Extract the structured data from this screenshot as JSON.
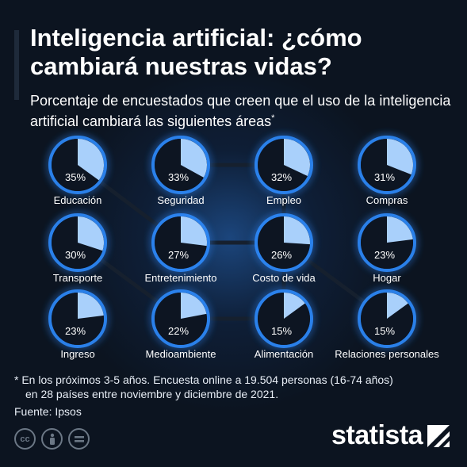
{
  "header": {
    "title": "Inteligencia artificial: ¿cómo cambiará nuestras vidas?",
    "subtitle": "Porcentaje de encuestados que creen que el uso de la inteligencia artificial cambiará las siguientes áreas",
    "subtitle_mark": "*"
  },
  "chart_data": {
    "type": "pie",
    "title": "Inteligencia artificial: ¿cómo cambiará nuestras vidas?",
    "subtitle": "Porcentaje de encuestados que creen que el uso de la inteligencia artificial cambiará las siguientes áreas",
    "unit": "%",
    "items": [
      {
        "label": "Educación",
        "value": 35,
        "value_label": "35%"
      },
      {
        "label": "Seguridad",
        "value": 33,
        "value_label": "33%"
      },
      {
        "label": "Empleo",
        "value": 32,
        "value_label": "32%"
      },
      {
        "label": "Compras",
        "value": 31,
        "value_label": "31%"
      },
      {
        "label": "Transporte",
        "value": 30,
        "value_label": "30%"
      },
      {
        "label": "Entretenimiento",
        "value": 27,
        "value_label": "27%"
      },
      {
        "label": "Costo de vida",
        "value": 26,
        "value_label": "26%"
      },
      {
        "label": "Hogar",
        "value": 23,
        "value_label": "23%"
      },
      {
        "label": "Ingreso",
        "value": 23,
        "value_label": "23%"
      },
      {
        "label": "Medioambiente",
        "value": 22,
        "value_label": "22%"
      },
      {
        "label": "Alimentación",
        "value": 15,
        "value_label": "15%"
      },
      {
        "label": "Relaciones personales",
        "value": 15,
        "value_label": "15%"
      }
    ],
    "colors": {
      "slice": "#a9d0fb",
      "rest": "#0d1522",
      "glow": "#2f8cff",
      "label": "#ffffff",
      "value": "#ffffff"
    }
  },
  "footer": {
    "note_line1": "* En los próximos 3-5 años. Encuesta online a 19.504 personas (16-74 años)",
    "note_line2": "en 28 países entre noviembre y diciembre de 2021.",
    "source": "Fuente: Ipsos",
    "cc_icons": [
      "cc",
      "by",
      "nd"
    ],
    "brand": "statista"
  }
}
